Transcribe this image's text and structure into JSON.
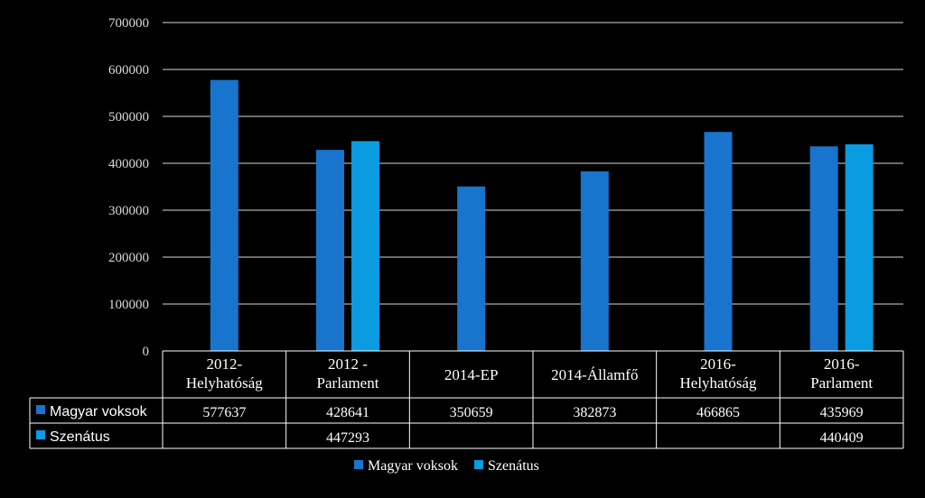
{
  "chart_data": {
    "type": "bar",
    "categories": [
      [
        "2012-",
        "Helyhatóság"
      ],
      [
        "2012 -",
        "Parlament"
      ],
      [
        "2014-EP"
      ],
      [
        "2014-Államfő"
      ],
      [
        "2016-",
        "Helyhatóság"
      ],
      [
        "2016-",
        "Parlament"
      ]
    ],
    "series": [
      {
        "name": "Magyar voksok",
        "color": "#1874cd",
        "values": [
          577637,
          428641,
          350659,
          382873,
          466865,
          435969
        ],
        "labels": [
          "577637",
          "428641",
          "350659",
          "382873",
          "466865",
          "435969"
        ]
      },
      {
        "name": "Szenátus",
        "color": "#0a9be0",
        "values": [
          null,
          447293,
          null,
          null,
          null,
          440409
        ],
        "labels": [
          "",
          "447293",
          "",
          "",
          "",
          "440409"
        ]
      }
    ],
    "ylim": [
      0,
      700000
    ],
    "yticks": [
      "0",
      "100000",
      "200000",
      "300000",
      "400000",
      "500000",
      "600000",
      "700000"
    ],
    "grid": true,
    "legend": "bottom",
    "data_table": true
  }
}
